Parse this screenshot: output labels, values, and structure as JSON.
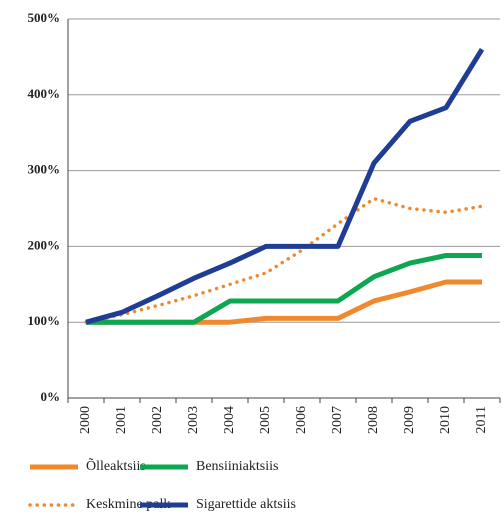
{
  "chart_data": {
    "type": "line",
    "categories": [
      "2000",
      "2001",
      "2002",
      "2003",
      "2004",
      "2005",
      "2006",
      "2007",
      "2008",
      "2009",
      "2010",
      "2011"
    ],
    "series": [
      {
        "name": "Õlleaktsiis",
        "color": "#f0892e",
        "style": "solid",
        "values": [
          100,
          100,
          100,
          100,
          100,
          105,
          105,
          105,
          128,
          140,
          153,
          153
        ]
      },
      {
        "name": "Bensiiniaktsiis",
        "color": "#0ca750",
        "style": "solid",
        "values": [
          100,
          100,
          100,
          100,
          128,
          128,
          128,
          128,
          160,
          178,
          188,
          188
        ]
      },
      {
        "name": "Keskmine palk",
        "color": "#f0892e",
        "style": "dotted",
        "values": [
          100,
          110,
          122,
          135,
          150,
          165,
          195,
          230,
          263,
          250,
          245,
          253
        ]
      },
      {
        "name": "Sigarettide aktsiis",
        "color": "#1f3d94",
        "style": "solid",
        "values": [
          100,
          113,
          135,
          158,
          178,
          200,
          200,
          200,
          310,
          365,
          383,
          460
        ]
      }
    ],
    "ylim": [
      0,
      500
    ],
    "yticks": [
      {
        "value": 0,
        "label": "0%"
      },
      {
        "value": 100,
        "label": "100%"
      },
      {
        "value": 200,
        "label": "200%"
      },
      {
        "value": 300,
        "label": "300%"
      },
      {
        "value": 400,
        "label": "400%"
      },
      {
        "value": 500,
        "label": "500%"
      }
    ],
    "grid": true
  }
}
